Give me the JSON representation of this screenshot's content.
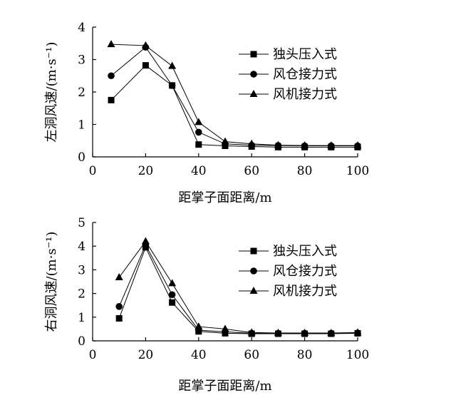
{
  "chart_data": [
    {
      "type": "line",
      "title": "",
      "xlabel": "距掌子面距离/m",
      "ylabel": "左洞风速/(m·s⁻¹)",
      "xlim": [
        0,
        100
      ],
      "ylim": [
        0,
        4
      ],
      "xticks": [
        0,
        20,
        40,
        60,
        80,
        100
      ],
      "yticks": [
        0,
        1,
        2,
        3,
        4
      ],
      "grid": false,
      "legend_position": "right",
      "series": [
        {
          "name": "独头压入式",
          "marker": "square",
          "x": [
            7,
            20,
            30,
            40,
            50,
            60,
            70,
            80,
            90,
            100
          ],
          "y": [
            1.75,
            2.82,
            2.2,
            0.38,
            0.34,
            0.32,
            0.3,
            0.3,
            0.3,
            0.3
          ]
        },
        {
          "name": "风仓接力式",
          "marker": "circle",
          "x": [
            7,
            20,
            30,
            40,
            50,
            60,
            70,
            80,
            90,
            100
          ],
          "y": [
            2.5,
            3.38,
            2.2,
            0.76,
            0.4,
            0.36,
            0.35,
            0.34,
            0.34,
            0.34
          ]
        },
        {
          "name": "风机接力式",
          "marker": "triangle",
          "x": [
            7,
            20,
            30,
            40,
            50,
            60,
            70,
            80,
            90,
            100
          ],
          "y": [
            3.47,
            3.43,
            2.8,
            1.07,
            0.47,
            0.4,
            0.36,
            0.35,
            0.35,
            0.35
          ]
        }
      ]
    },
    {
      "type": "line",
      "title": "",
      "xlabel": "距掌子面距离/m",
      "ylabel": "右洞风速/(m·s⁻¹)",
      "xlim": [
        0,
        100
      ],
      "ylim": [
        0,
        5
      ],
      "xticks": [
        0,
        20,
        40,
        60,
        80,
        100
      ],
      "yticks": [
        0,
        1,
        2,
        3,
        4,
        5
      ],
      "grid": false,
      "legend_position": "right",
      "series": [
        {
          "name": "独头压入式",
          "marker": "square",
          "x": [
            10,
            20,
            30,
            40,
            50,
            60,
            70,
            80,
            90,
            100
          ],
          "y": [
            0.95,
            3.95,
            1.62,
            0.4,
            0.32,
            0.3,
            0.3,
            0.3,
            0.3,
            0.32
          ]
        },
        {
          "name": "风仓接力式",
          "marker": "circle",
          "x": [
            10,
            20,
            30,
            40,
            50,
            60,
            70,
            80,
            90,
            100
          ],
          "y": [
            1.45,
            4.05,
            1.95,
            0.45,
            0.38,
            0.32,
            0.32,
            0.32,
            0.32,
            0.33
          ]
        },
        {
          "name": "风机接力式",
          "marker": "triangle",
          "x": [
            10,
            20,
            30,
            40,
            50,
            60,
            70,
            80,
            90,
            100
          ],
          "y": [
            2.68,
            4.2,
            2.43,
            0.6,
            0.5,
            0.35,
            0.33,
            0.33,
            0.33,
            0.35
          ]
        }
      ]
    }
  ]
}
